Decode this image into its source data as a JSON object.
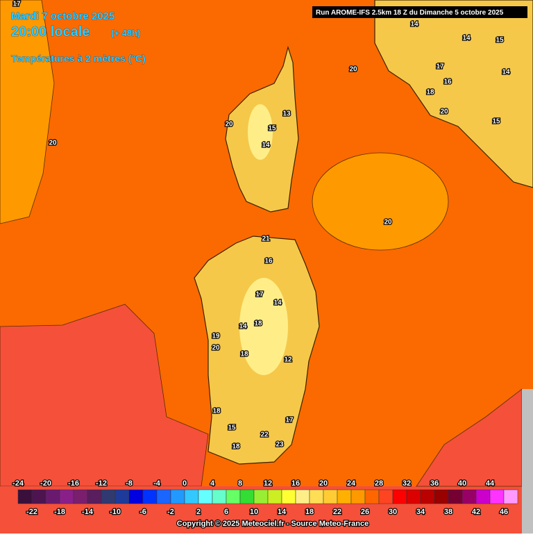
{
  "header": {
    "date": "Mardi 7 octobre 2025",
    "time": "20:00 locale",
    "lead": "(+ 48h)",
    "parameter": "Températures à 2 mètres (°C)",
    "run": "Run AROME-IFS 2.5km 18 Z du Dimanche 5 octobre 2025"
  },
  "map_labels": [
    "20",
    "20",
    "20",
    "21",
    "16",
    "17",
    "14",
    "19",
    "20",
    "18",
    "18",
    "15",
    "18",
    "22",
    "23",
    "17",
    "14",
    "14",
    "15",
    "14",
    "18",
    "16",
    "17",
    "20",
    "15",
    "13",
    "20",
    "15",
    "14",
    "17",
    "18",
    "14",
    "12"
  ],
  "legend": {
    "colors": [
      "#3b0f3b",
      "#4d1450",
      "#6a1a6e",
      "#8a1f8a",
      "#7b1e6e",
      "#5a1d5e",
      "#303a70",
      "#1e3a9a",
      "#0000e0",
      "#0033ff",
      "#1a66ff",
      "#2299ff",
      "#33c8ff",
      "#66ffff",
      "#66ffcc",
      "#66ff66",
      "#33dd33",
      "#99ee33",
      "#ccee22",
      "#ffff33",
      "#ffee88",
      "#ffdd55",
      "#ffcc33",
      "#ffb000",
      "#ff9900",
      "#ff6600",
      "#ff4422",
      "#ff0000",
      "#dd0000",
      "#bb0000",
      "#990000",
      "#770033",
      "#990066",
      "#cc00cc",
      "#ff33ff",
      "#ff99ff"
    ],
    "top_labels": [
      "-24",
      "-20",
      "-16",
      "-12",
      "-8",
      "-4",
      "0",
      "4",
      "8",
      "12",
      "16",
      "20",
      "24",
      "28",
      "32",
      "36",
      "40",
      "44"
    ],
    "bottom_labels": [
      "-22",
      "-18",
      "-14",
      "-10",
      "-6",
      "-2",
      "2",
      "6",
      "10",
      "14",
      "18",
      "22",
      "26",
      "30",
      "34",
      "38",
      "42",
      "46"
    ]
  },
  "footer": "Copyright © 2025 Meteociel.fr - Source Meteo-France"
}
